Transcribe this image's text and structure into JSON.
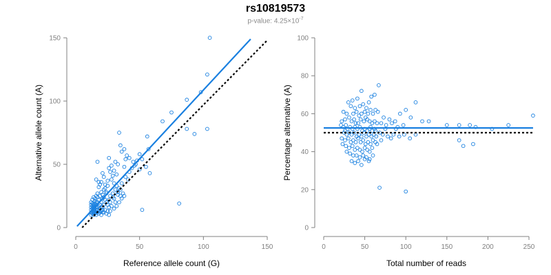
{
  "title": "rs10819573",
  "subtitle": {
    "prefix": "p-value: 4.25×10",
    "exponent": "-7"
  },
  "colors": {
    "points": "#1a80e0",
    "fit": "#1a80e0",
    "reference": "#000000",
    "axis": "#808080"
  },
  "chart_data": [
    {
      "type": "scatter",
      "xlabel": "Reference allele count (G)",
      "ylabel": "Alternative allele count (A)",
      "xlim": [
        0,
        150
      ],
      "ylim": [
        0,
        150
      ],
      "xticks": [
        0,
        50,
        100,
        150
      ],
      "yticks": [
        0,
        50,
        100,
        150
      ],
      "fit_line": {
        "x": [
          1,
          137
        ],
        "y": [
          1,
          149
        ]
      },
      "reference_line": {
        "x": [
          5,
          150
        ],
        "y": [
          0,
          148
        ]
      },
      "points": [
        [
          105,
          150
        ],
        [
          103,
          121
        ],
        [
          98,
          107
        ],
        [
          87,
          101
        ],
        [
          93,
          74
        ],
        [
          103,
          78
        ],
        [
          87,
          78
        ],
        [
          81,
          19
        ],
        [
          52,
          14
        ],
        [
          68,
          84
        ],
        [
          75,
          91
        ],
        [
          56,
          72
        ],
        [
          50,
          58
        ],
        [
          42,
          55
        ],
        [
          34,
          75
        ],
        [
          35,
          65
        ],
        [
          36,
          60
        ],
        [
          38,
          62
        ],
        [
          40,
          57
        ],
        [
          45,
          52
        ],
        [
          48,
          53
        ],
        [
          52,
          54
        ],
        [
          55,
          48
        ],
        [
          44,
          47
        ],
        [
          47,
          50
        ],
        [
          50,
          46
        ],
        [
          58,
          43
        ],
        [
          30,
          45
        ],
        [
          32,
          42
        ],
        [
          33,
          50
        ],
        [
          31,
          52
        ],
        [
          28,
          49
        ],
        [
          39,
          40
        ],
        [
          41,
          38
        ],
        [
          36,
          35
        ],
        [
          42,
          44
        ],
        [
          26,
          55
        ],
        [
          20,
          36
        ],
        [
          25,
          33
        ],
        [
          28,
          38
        ],
        [
          30,
          35
        ],
        [
          32,
          33
        ],
        [
          34,
          31
        ],
        [
          35,
          25
        ],
        [
          37,
          27
        ],
        [
          38,
          25
        ],
        [
          23,
          22
        ],
        [
          24,
          27
        ],
        [
          26,
          22
        ],
        [
          27,
          25
        ],
        [
          29,
          27
        ],
        [
          30,
          23
        ],
        [
          31,
          20
        ],
        [
          33,
          26
        ],
        [
          34,
          20
        ],
        [
          36,
          23
        ],
        [
          20,
          20
        ],
        [
          21,
          23
        ],
        [
          22,
          18
        ],
        [
          24,
          20
        ],
        [
          25,
          18
        ],
        [
          26,
          16
        ],
        [
          27,
          20
        ],
        [
          28,
          17
        ],
        [
          29,
          24
        ],
        [
          30,
          15
        ],
        [
          32,
          17
        ],
        [
          15,
          23
        ],
        [
          16,
          25
        ],
        [
          17,
          27
        ],
        [
          18,
          22
        ],
        [
          19,
          25
        ],
        [
          20,
          28
        ],
        [
          21,
          26
        ],
        [
          22,
          30
        ],
        [
          23,
          31
        ],
        [
          24,
          28
        ],
        [
          18,
          32
        ],
        [
          19,
          34
        ],
        [
          17,
          20
        ],
        [
          18,
          17
        ],
        [
          19,
          15
        ],
        [
          20,
          13
        ],
        [
          21,
          16
        ],
        [
          22,
          12
        ],
        [
          23,
          14
        ],
        [
          24,
          11
        ],
        [
          25,
          13
        ],
        [
          26,
          10
        ],
        [
          27,
          13
        ],
        [
          12,
          10
        ],
        [
          12,
          12
        ],
        [
          12,
          14
        ],
        [
          12,
          16
        ],
        [
          12,
          18
        ],
        [
          13,
          11
        ],
        [
          13,
          13
        ],
        [
          13,
          15
        ],
        [
          13,
          17
        ],
        [
          13,
          19
        ],
        [
          14,
          10
        ],
        [
          14,
          12
        ],
        [
          14,
          14
        ],
        [
          14,
          16
        ],
        [
          14,
          18
        ],
        [
          15,
          11
        ],
        [
          15,
          13
        ],
        [
          15,
          15
        ],
        [
          15,
          17
        ],
        [
          15,
          19
        ],
        [
          16,
          10
        ],
        [
          16,
          12
        ],
        [
          16,
          14
        ],
        [
          16,
          16
        ],
        [
          16,
          18
        ],
        [
          17,
          12
        ],
        [
          17,
          14
        ],
        [
          17,
          16
        ],
        [
          18,
          11
        ],
        [
          18,
          13
        ],
        [
          19,
          12
        ],
        [
          19,
          18
        ],
        [
          20,
          10
        ],
        [
          20,
          16
        ],
        [
          21,
          12
        ],
        [
          21,
          14
        ],
        [
          16,
          20
        ],
        [
          17,
          24
        ],
        [
          18,
          36
        ],
        [
          16,
          38
        ],
        [
          17,
          52
        ],
        [
          22,
          40
        ],
        [
          27,
          44
        ],
        [
          29,
          41
        ],
        [
          26,
          47
        ],
        [
          21,
          43
        ],
        [
          23,
          34
        ],
        [
          12,
          20
        ],
        [
          13,
          22
        ],
        [
          14,
          24
        ],
        [
          15,
          21
        ],
        [
          22,
          24
        ],
        [
          31,
          30
        ],
        [
          33,
          28
        ],
        [
          35,
          30
        ],
        [
          25,
          37
        ],
        [
          38,
          48
        ],
        [
          39,
          54
        ],
        [
          46,
          49
        ],
        [
          57,
          62
        ]
      ]
    },
    {
      "type": "scatter",
      "xlabel": "Total number of reads",
      "ylabel": "Percentage alternative (A)",
      "xlim": [
        0,
        250
      ],
      "ylim": [
        0,
        100
      ],
      "xticks": [
        0,
        50,
        100,
        150,
        200,
        250
      ],
      "yticks": [
        0,
        20,
        40,
        60,
        80,
        100
      ],
      "fit_line": {
        "x": [
          0,
          255
        ],
        "y": [
          52.5,
          52.5
        ]
      },
      "reference_line": {
        "x": [
          0,
          255
        ],
        "y": [
          50,
          50
        ]
      },
      "points": [
        [
          67,
          75
        ],
        [
          46,
          72
        ],
        [
          35,
          67
        ],
        [
          41,
          68
        ],
        [
          58,
          69
        ],
        [
          62,
          70
        ],
        [
          55,
          66
        ],
        [
          48,
          65
        ],
        [
          30,
          66
        ],
        [
          33,
          64
        ],
        [
          38,
          63
        ],
        [
          44,
          64
        ],
        [
          52,
          63
        ],
        [
          57,
          62
        ],
        [
          63,
          62
        ],
        [
          24,
          61
        ],
        [
          28,
          60
        ],
        [
          36,
          60
        ],
        [
          40,
          61
        ],
        [
          46,
          60
        ],
        [
          50,
          61
        ],
        [
          54,
          60
        ],
        [
          60,
          60
        ],
        [
          66,
          61
        ],
        [
          73,
          58
        ],
        [
          80,
          57
        ],
        [
          87,
          56
        ],
        [
          93,
          60
        ],
        [
          100,
          62
        ],
        [
          106,
          58
        ],
        [
          112,
          66
        ],
        [
          120,
          56
        ],
        [
          128,
          56
        ],
        [
          150,
          54
        ],
        [
          165,
          54
        ],
        [
          178,
          54
        ],
        [
          185,
          53
        ],
        [
          205,
          52
        ],
        [
          225,
          54
        ],
        [
          255,
          59
        ],
        [
          22,
          56
        ],
        [
          26,
          57
        ],
        [
          31,
          58
        ],
        [
          34,
          56
        ],
        [
          37,
          57
        ],
        [
          42,
          55
        ],
        [
          45,
          57
        ],
        [
          49,
          56
        ],
        [
          53,
          57
        ],
        [
          56,
          56
        ],
        [
          59,
          55
        ],
        [
          62,
          56
        ],
        [
          65,
          55
        ],
        [
          70,
          55
        ],
        [
          76,
          54
        ],
        [
          83,
          55
        ],
        [
          90,
          53
        ],
        [
          97,
          54
        ],
        [
          21,
          54
        ],
        [
          24,
          53
        ],
        [
          27,
          54
        ],
        [
          29,
          52
        ],
        [
          32,
          53
        ],
        [
          35,
          52
        ],
        [
          38,
          53
        ],
        [
          41,
          52
        ],
        [
          44,
          53
        ],
        [
          47,
          51
        ],
        [
          50,
          52
        ],
        [
          53,
          51
        ],
        [
          56,
          52
        ],
        [
          59,
          51
        ],
        [
          62,
          52
        ],
        [
          25,
          50
        ],
        [
          28,
          49
        ],
        [
          31,
          50
        ],
        [
          34,
          49
        ],
        [
          37,
          50
        ],
        [
          40,
          48
        ],
        [
          43,
          49
        ],
        [
          46,
          48
        ],
        [
          49,
          50
        ],
        [
          52,
          48
        ],
        [
          55,
          49
        ],
        [
          58,
          48
        ],
        [
          61,
          49
        ],
        [
          64,
          48
        ],
        [
          68,
          50
        ],
        [
          72,
          49
        ],
        [
          78,
          48
        ],
        [
          85,
          49
        ],
        [
          92,
          48
        ],
        [
          22,
          47
        ],
        [
          26,
          46
        ],
        [
          30,
          47
        ],
        [
          33,
          45
        ],
        [
          36,
          46
        ],
        [
          39,
          45
        ],
        [
          42,
          47
        ],
        [
          45,
          45
        ],
        [
          48,
          46
        ],
        [
          51,
          44
        ],
        [
          54,
          45
        ],
        [
          57,
          44
        ],
        [
          60,
          46
        ],
        [
          63,
          45
        ],
        [
          23,
          44
        ],
        [
          27,
          43
        ],
        [
          31,
          42
        ],
        [
          35,
          43
        ],
        [
          38,
          41
        ],
        [
          41,
          42
        ],
        [
          44,
          41
        ],
        [
          47,
          40
        ],
        [
          50,
          42
        ],
        [
          53,
          41
        ],
        [
          56,
          40
        ],
        [
          59,
          42
        ],
        [
          28,
          40
        ],
        [
          32,
          39
        ],
        [
          36,
          38
        ],
        [
          40,
          38
        ],
        [
          44,
          37
        ],
        [
          48,
          38
        ],
        [
          52,
          37
        ],
        [
          56,
          36
        ],
        [
          34,
          35
        ],
        [
          38,
          34
        ],
        [
          42,
          35
        ],
        [
          46,
          33
        ],
        [
          50,
          36
        ],
        [
          55,
          35
        ],
        [
          60,
          38
        ],
        [
          65,
          44
        ],
        [
          98,
          49
        ],
        [
          105,
          47
        ],
        [
          112,
          49
        ],
        [
          165,
          46
        ],
        [
          170,
          43
        ],
        [
          182,
          44
        ],
        [
          68,
          21
        ],
        [
          100,
          19
        ],
        [
          26,
          51
        ],
        [
          39,
          55
        ],
        [
          43,
          59
        ],
        [
          51,
          58
        ],
        [
          57,
          53
        ],
        [
          63,
          51
        ],
        [
          70,
          46
        ],
        [
          75,
          52
        ],
        [
          82,
          47
        ],
        [
          88,
          52
        ]
      ]
    }
  ]
}
